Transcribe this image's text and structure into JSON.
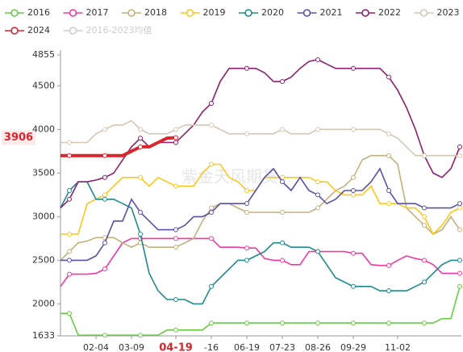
{
  "chart_data": {
    "type": "line",
    "categories": [
      null,
      null,
      null,
      null,
      "02-04",
      null,
      null,
      null,
      "03-09",
      null,
      null,
      null,
      null,
      "04-19",
      null,
      null,
      null,
      "-16",
      null,
      null,
      null,
      "06-19",
      null,
      null,
      null,
      "07-23",
      null,
      null,
      null,
      "08-26",
      null,
      null,
      null,
      "09-29",
      null,
      null,
      null,
      null,
      "11-02",
      null,
      null,
      null,
      null,
      null,
      null,
      null
    ],
    "ylim": [
      1633,
      4855
    ],
    "yticks": [
      1633,
      2000,
      2500,
      3000,
      3500,
      4000,
      4500,
      4855
    ],
    "crosshair": {
      "category": "04-19",
      "value": 3906,
      "color": "#d9262c"
    },
    "watermark": "紫金天风期货",
    "legend_inactive": [
      {
        "name": "2016-2023均值",
        "color": "#cccccc"
      }
    ],
    "series": [
      {
        "name": "2016",
        "color": "#66cc44",
        "values": [
          1890,
          1890,
          1640,
          1640,
          1640,
          1640,
          1640,
          1640,
          1640,
          1640,
          1640,
          1640,
          1700,
          1700,
          1700,
          1700,
          1700,
          1780,
          1780,
          1780,
          1780,
          1780,
          1780,
          1780,
          1780,
          1780,
          1780,
          1780,
          1780,
          1780,
          1780,
          1780,
          1780,
          1780,
          1780,
          1780,
          1780,
          1780,
          1780,
          1780,
          1780,
          1780,
          1780,
          1830,
          1830,
          2200
        ]
      },
      {
        "name": "2017",
        "color": "#f0399e",
        "values": [
          2200,
          2340,
          2340,
          2340,
          2350,
          2400,
          2550,
          2700,
          2750,
          2750,
          2750,
          2750,
          2750,
          2750,
          2750,
          2750,
          2750,
          2750,
          2650,
          2650,
          2650,
          2640,
          2640,
          2520,
          2500,
          2500,
          2450,
          2450,
          2600,
          2600,
          2600,
          2600,
          2600,
          2580,
          2580,
          2450,
          2440,
          2440,
          2500,
          2550,
          2520,
          2500,
          2450,
          2350,
          2350,
          2350
        ]
      },
      {
        "name": "2018",
        "color": "#c2b07c",
        "values": [
          2500,
          2600,
          2700,
          2720,
          2760,
          2760,
          2760,
          2700,
          2650,
          2700,
          2650,
          2650,
          2650,
          2650,
          2700,
          2750,
          2950,
          3100,
          3150,
          3150,
          3100,
          3050,
          3050,
          3050,
          3050,
          3050,
          3050,
          3050,
          3050,
          3100,
          3200,
          3300,
          3350,
          3450,
          3650,
          3700,
          3700,
          3700,
          3600,
          3100,
          3000,
          2900,
          2800,
          2850,
          3000,
          2850
        ]
      },
      {
        "name": "2019",
        "color": "#ffc61a",
        "values": [
          2800,
          2800,
          2800,
          3150,
          3200,
          3250,
          3350,
          3450,
          3450,
          3450,
          3350,
          3450,
          3400,
          3350,
          3350,
          3350,
          3500,
          3600,
          3600,
          3450,
          3400,
          3300,
          3300,
          3450,
          3450,
          3450,
          3450,
          3450,
          3450,
          3400,
          3400,
          3300,
          3250,
          3250,
          3250,
          3350,
          3150,
          3150,
          3150,
          3100,
          3100,
          3000,
          2800,
          2900,
          3050,
          3100
        ]
      },
      {
        "name": "2020",
        "color": "#1e8a8c",
        "values": [
          3100,
          3300,
          3400,
          3400,
          3200,
          3200,
          3200,
          3150,
          3100,
          2800,
          2350,
          2150,
          2050,
          2050,
          2050,
          2000,
          2000,
          2200,
          2300,
          2400,
          2500,
          2500,
          2550,
          2600,
          2700,
          2700,
          2650,
          2650,
          2650,
          2600,
          2450,
          2300,
          2250,
          2200,
          2200,
          2200,
          2150,
          2150,
          2150,
          2150,
          2200,
          2250,
          2350,
          2450,
          2500,
          2500
        ]
      },
      {
        "name": "2021",
        "color": "#5a50a8",
        "values": [
          2500,
          2500,
          2500,
          2500,
          2550,
          2700,
          2950,
          2950,
          3200,
          3050,
          2950,
          2850,
          2850,
          2850,
          2900,
          3000,
          3000,
          3050,
          3150,
          3150,
          3150,
          3150,
          3300,
          3450,
          3550,
          3400,
          3300,
          3450,
          3300,
          3250,
          3150,
          3200,
          3300,
          3300,
          3300,
          3400,
          3550,
          3300,
          3150,
          3150,
          3150,
          3100,
          3100,
          3100,
          3100,
          3150
        ]
      },
      {
        "name": "2022",
        "color": "#8c1f6e",
        "values": [
          3100,
          3200,
          3400,
          3400,
          3420,
          3450,
          3500,
          3650,
          3800,
          3900,
          3800,
          3850,
          3850,
          3850,
          3950,
          4050,
          4200,
          4300,
          4550,
          4700,
          4700,
          4700,
          4700,
          4650,
          4550,
          4550,
          4600,
          4700,
          4780,
          4800,
          4750,
          4700,
          4700,
          4700,
          4700,
          4700,
          4700,
          4600,
          4450,
          4250,
          4000,
          3700,
          3500,
          3450,
          3550,
          3800
        ]
      },
      {
        "name": "2023",
        "color": "#d6c6b4",
        "values": [
          3850,
          3850,
          3850,
          3850,
          3950,
          4000,
          4050,
          4050,
          4100,
          4000,
          3950,
          3950,
          3950,
          4000,
          4050,
          4050,
          4050,
          4050,
          4000,
          3950,
          3950,
          3950,
          3950,
          3950,
          3950,
          4000,
          3950,
          3950,
          3950,
          4000,
          4000,
          4000,
          4000,
          4000,
          4000,
          4000,
          4000,
          3950,
          3900,
          3800,
          3700,
          3700,
          3700,
          3700,
          3700,
          3700
        ]
      },
      {
        "name": "2024",
        "color": "#d9262c",
        "width": 4,
        "values": [
          3700,
          3700,
          3700,
          3700,
          3700,
          3700,
          3700,
          3700,
          3750,
          3800,
          3800,
          3850,
          3900,
          3906,
          null,
          null,
          null,
          null,
          null,
          null,
          null,
          null,
          null,
          null,
          null,
          null,
          null,
          null,
          null,
          null,
          null,
          null,
          null,
          null,
          null,
          null,
          null,
          null,
          null,
          null,
          null,
          null,
          null,
          null,
          null,
          null
        ]
      }
    ]
  }
}
